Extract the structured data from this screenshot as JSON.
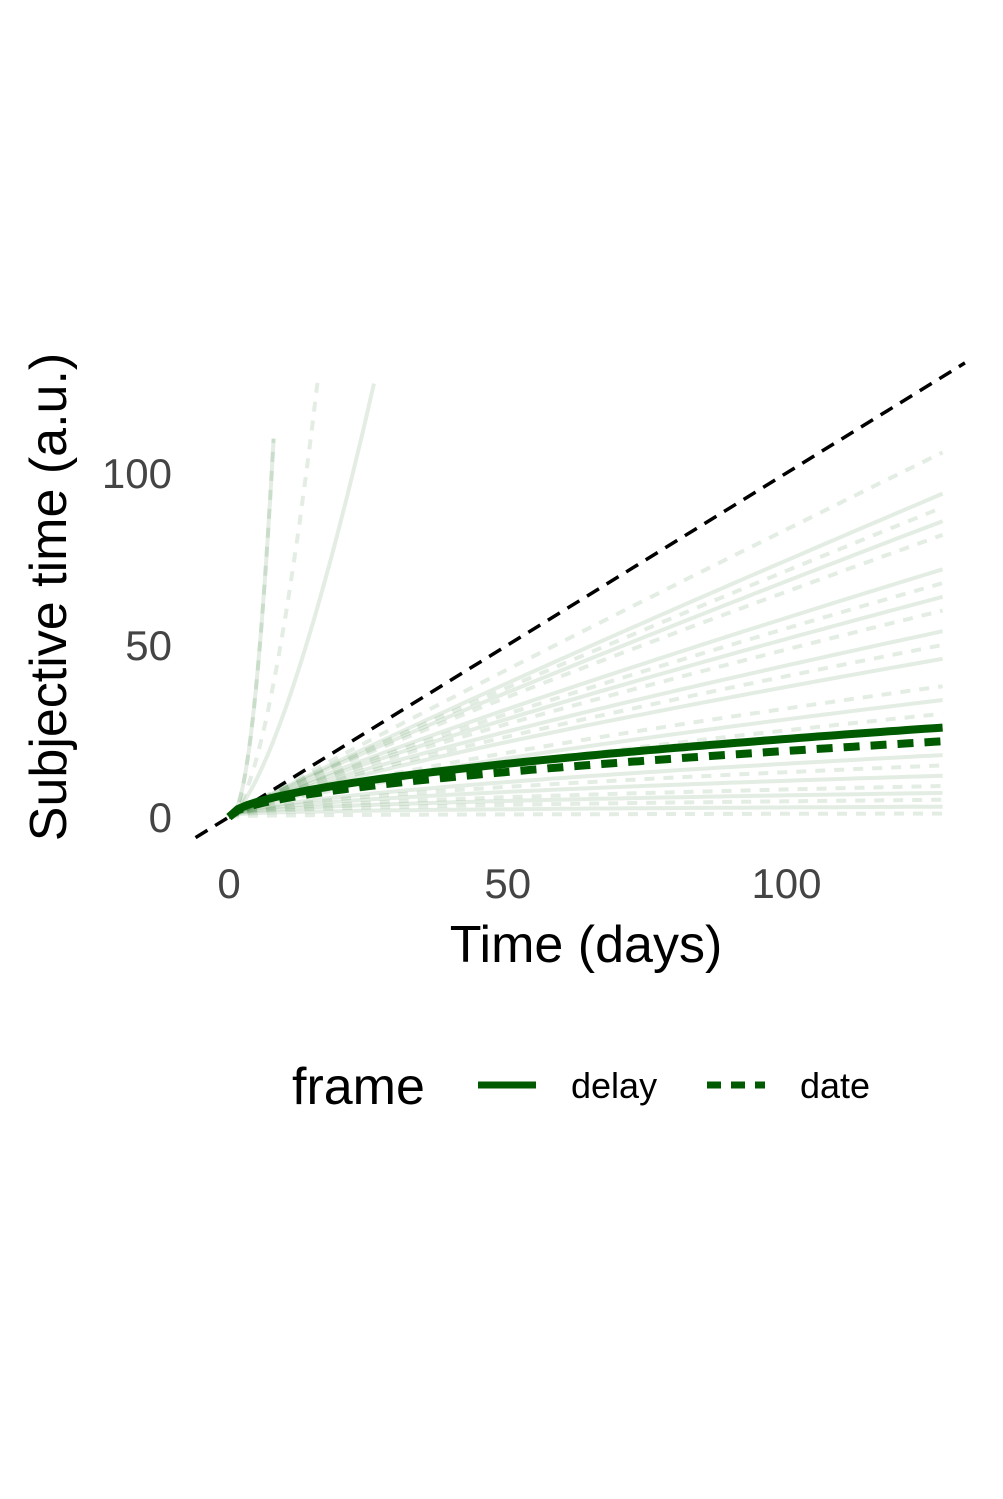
{
  "chart_data": {
    "type": "line",
    "xlabel": "Time (days)",
    "ylabel": "Subjective time (a.u.)",
    "xlim": [
      -6,
      133
    ],
    "ylim": [
      -6,
      133
    ],
    "x_ticks": [
      0,
      50,
      100
    ],
    "y_ticks": [
      0,
      50,
      100
    ],
    "x_tick_labels": [
      "0",
      "50",
      "100"
    ],
    "y_tick_labels": [
      "0",
      "50",
      "100"
    ],
    "grid": false,
    "legend": {
      "title": "frame",
      "position": "bottom",
      "entries": [
        {
          "label": "delay",
          "linetype": "solid"
        },
        {
          "label": "date",
          "linetype": "dashed"
        }
      ]
    },
    "colors": {
      "series": "#005a00",
      "reference": "#000000",
      "faint": "#005a00"
    },
    "reference_line": {
      "slope": 1,
      "intercept": 0,
      "linetype": "dashed"
    },
    "summary_series": [
      {
        "name": "delay",
        "linetype": "solid",
        "x_max": 128,
        "end_value": 26
      },
      {
        "name": "date",
        "linetype": "dashed",
        "x_max": 128,
        "end_value": 22
      }
    ],
    "individual_series": [
      {
        "linetype": "dashed",
        "x_max": 8,
        "end_value": 110
      },
      {
        "linetype": "solid",
        "x_max": 8,
        "end_value": 110
      },
      {
        "linetype": "dashed",
        "x_max": 16,
        "end_value": 128
      },
      {
        "linetype": "solid",
        "x_max": 26,
        "end_value": 126
      },
      {
        "linetype": "dashed",
        "x_max": 128,
        "end_value": 106
      },
      {
        "linetype": "solid",
        "x_max": 128,
        "end_value": 94
      },
      {
        "linetype": "dashed",
        "x_max": 128,
        "end_value": 90
      },
      {
        "linetype": "solid",
        "x_max": 128,
        "end_value": 86
      },
      {
        "linetype": "dashed",
        "x_max": 128,
        "end_value": 82
      },
      {
        "linetype": "solid",
        "x_max": 128,
        "end_value": 72
      },
      {
        "linetype": "dashed",
        "x_max": 128,
        "end_value": 68
      },
      {
        "linetype": "solid",
        "x_max": 128,
        "end_value": 64
      },
      {
        "linetype": "dashed",
        "x_max": 128,
        "end_value": 60
      },
      {
        "linetype": "solid",
        "x_max": 128,
        "end_value": 54
      },
      {
        "linetype": "dashed",
        "x_max": 128,
        "end_value": 50
      },
      {
        "linetype": "solid",
        "x_max": 128,
        "end_value": 46
      },
      {
        "linetype": "dashed",
        "x_max": 128,
        "end_value": 38
      },
      {
        "linetype": "solid",
        "x_max": 128,
        "end_value": 34
      },
      {
        "linetype": "dashed",
        "x_max": 128,
        "end_value": 30
      },
      {
        "linetype": "solid",
        "x_max": 128,
        "end_value": 18
      },
      {
        "linetype": "dashed",
        "x_max": 128,
        "end_value": 15
      },
      {
        "linetype": "solid",
        "x_max": 128,
        "end_value": 12
      },
      {
        "linetype": "dashed",
        "x_max": 128,
        "end_value": 9
      },
      {
        "linetype": "solid",
        "x_max": 128,
        "end_value": 7
      },
      {
        "linetype": "dashed",
        "x_max": 128,
        "end_value": 5
      },
      {
        "linetype": "solid",
        "x_max": 128,
        "end_value": 3
      },
      {
        "linetype": "dashed",
        "x_max": 128,
        "end_value": 1
      }
    ]
  }
}
